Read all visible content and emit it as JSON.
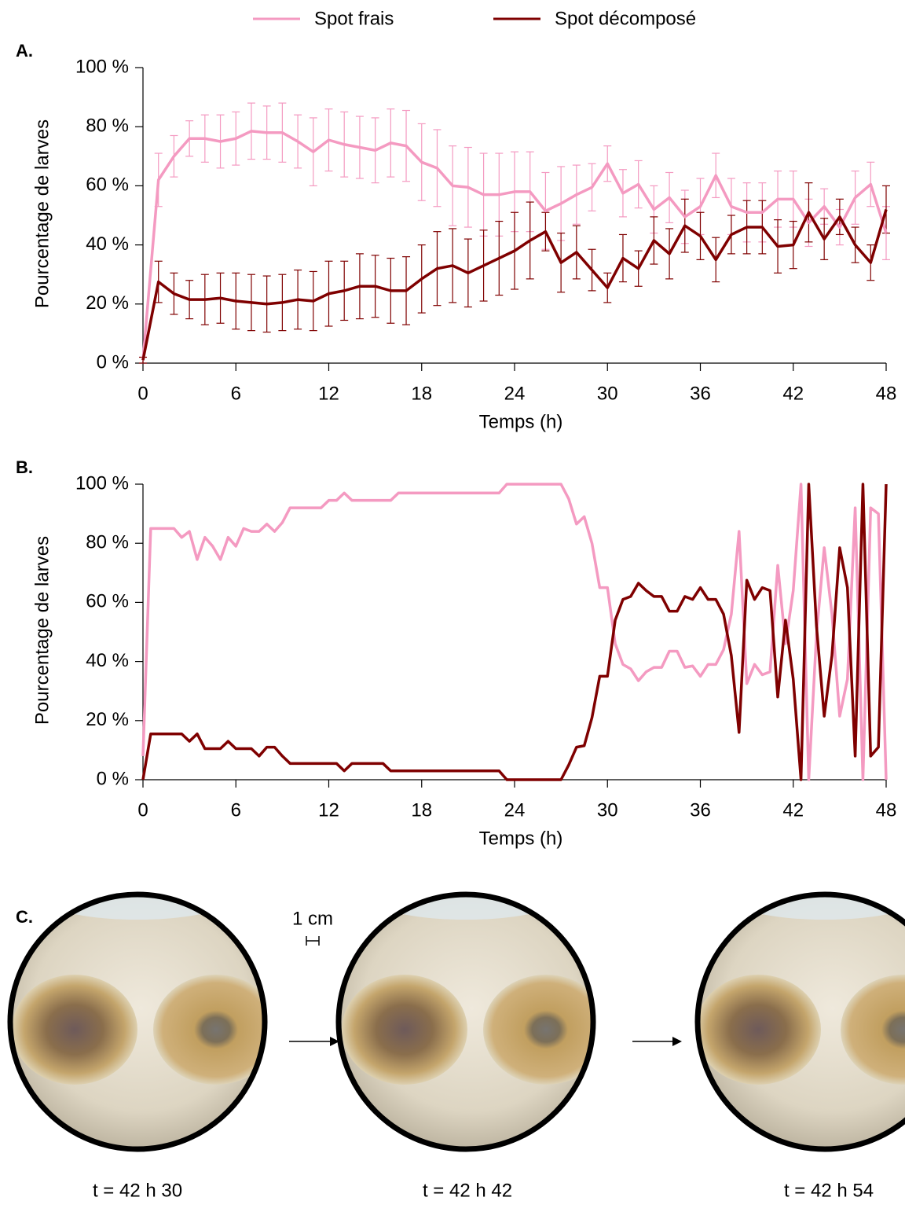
{
  "chart_data": [
    {
      "type": "line",
      "panel_label": "A.",
      "x_label": "Temps (h)",
      "y_label": "Pourcentage de larves",
      "x": [
        0,
        1,
        2,
        3,
        4,
        5,
        6,
        7,
        8,
        9,
        10,
        11,
        12,
        13,
        14,
        15,
        16,
        17,
        18,
        19,
        20,
        21,
        22,
        23,
        24,
        25,
        26,
        27,
        28,
        29,
        30,
        31,
        32,
        33,
        34,
        35,
        36,
        37,
        38,
        39,
        40,
        41,
        42,
        43,
        44,
        45,
        46,
        47,
        48
      ],
      "series": [
        {
          "name": "Spot frais",
          "color": "#f49ac1",
          "values": [
            1,
            62,
            70,
            76,
            76,
            75,
            76,
            78.5,
            78,
            78,
            75,
            71.5,
            75.5,
            74,
            73,
            72,
            74.5,
            73.5,
            68,
            66,
            60,
            59.5,
            57,
            57,
            58,
            58,
            51.5,
            54,
            57,
            59.5,
            67.5,
            57.5,
            60.5,
            52,
            56,
            49.5,
            53,
            63.5,
            53,
            51,
            51,
            55.5,
            55.5,
            47.5,
            53,
            46,
            56,
            60.5,
            44
          ],
          "errors": [
            1,
            9,
            7,
            6,
            8,
            9,
            9,
            9.5,
            9,
            10,
            9,
            11.5,
            10.5,
            11,
            10.5,
            11,
            11.5,
            12,
            13,
            13,
            13.5,
            13.5,
            14,
            14,
            13.5,
            13.5,
            13,
            12.5,
            10,
            8,
            6,
            8,
            8,
            8,
            8.5,
            9,
            9.5,
            7.5,
            9.5,
            10,
            10,
            9.5,
            9.5,
            8,
            6,
            6,
            9,
            7.5,
            9
          ]
        },
        {
          "name": "Spot décomposé",
          "color": "#7f0000",
          "values": [
            1,
            27.5,
            23.5,
            21.5,
            21.5,
            22,
            21,
            20.5,
            20,
            20.5,
            21.5,
            21,
            23.5,
            24.5,
            26,
            26,
            24.5,
            24.5,
            28.5,
            32,
            33,
            30.5,
            33,
            35.5,
            38,
            41.5,
            44.5,
            34,
            37.5,
            31.5,
            25.5,
            35.5,
            32,
            41.5,
            37,
            46.5,
            43,
            35,
            43.5,
            46,
            46,
            39.5,
            40,
            51,
            42,
            49.5,
            40,
            34,
            52
          ],
          "errors": [
            1,
            7,
            7,
            6.5,
            8.5,
            8.5,
            9.5,
            9.5,
            9.5,
            9.5,
            10,
            10,
            11,
            10,
            11,
            10.5,
            11,
            11.5,
            11.5,
            12.5,
            12.5,
            11.5,
            12,
            12.5,
            13,
            13,
            6.5,
            10,
            9,
            7,
            5,
            8,
            6,
            8,
            8.5,
            9,
            8,
            7.5,
            6.5,
            9,
            9,
            9,
            8,
            10,
            7,
            6,
            6,
            6,
            8
          ]
        }
      ],
      "xlim": [
        0,
        48
      ],
      "xticks": [
        0,
        6,
        12,
        18,
        24,
        30,
        36,
        42,
        48
      ],
      "ylim": [
        0,
        100
      ],
      "yticks": [
        {
          "value": 0,
          "label": "0 %"
        },
        {
          "value": 20,
          "label": "20 %"
        },
        {
          "value": 40,
          "label": "40 %"
        },
        {
          "value": 60,
          "label": "60 %"
        },
        {
          "value": 80,
          "label": "80 %"
        },
        {
          "value": 100,
          "label": "100 %"
        }
      ]
    },
    {
      "type": "line",
      "panel_label": "B.",
      "x_label": "Temps (h)",
      "y_label": "Pourcentage de larves",
      "x": [
        0,
        0.5,
        1,
        1.5,
        2,
        2.5,
        3,
        3.5,
        4,
        4.5,
        5,
        5.5,
        6,
        6.5,
        7,
        7.5,
        8,
        8.5,
        9,
        9.5,
        10,
        10.5,
        11,
        11.5,
        12,
        12.5,
        13,
        13.5,
        14,
        14.5,
        15,
        15.5,
        16,
        16.5,
        17,
        17.5,
        18,
        18.5,
        19,
        19.5,
        20,
        20.5,
        21,
        21.5,
        22,
        22.5,
        23,
        23.5,
        24,
        24.5,
        25,
        25.5,
        26,
        26.5,
        27,
        27.5,
        28,
        28.5,
        29,
        29.5,
        30,
        30.5,
        31,
        31.5,
        32,
        32.5,
        33,
        33.5,
        34,
        34.5,
        35,
        35.5,
        36,
        36.5,
        37,
        37.5,
        38,
        38.5,
        39,
        39.5,
        40,
        40.5,
        41,
        41.5,
        42,
        42.5,
        43,
        43.5,
        44,
        44.5,
        45,
        45.5,
        46,
        46.5,
        47,
        47.5,
        48
      ],
      "series": [
        {
          "color": "#f49ac1",
          "values": [
            8,
            85,
            85,
            85,
            85,
            82,
            84,
            74.5,
            82,
            79,
            74.5,
            82,
            79,
            85,
            84,
            84,
            86.5,
            84,
            87,
            92,
            92,
            92,
            92,
            92,
            94.5,
            94.5,
            97,
            94.5,
            94.5,
            94.5,
            94.5,
            94.5,
            94.5,
            97,
            97,
            97,
            97,
            97,
            97,
            97,
            97,
            97,
            97,
            97,
            97,
            97,
            97,
            100,
            100,
            100,
            100,
            100,
            100,
            100,
            100,
            95,
            86.5,
            89,
            80,
            65,
            65,
            46,
            39,
            37.5,
            33.5,
            36.5,
            38,
            38,
            43.5,
            43.5,
            38,
            38.5,
            35,
            39,
            39,
            44,
            56,
            84,
            32.5,
            39,
            35.5,
            36.5,
            72.5,
            46,
            64,
            100,
            0,
            49,
            78.5,
            56,
            21.5,
            34,
            92,
            0,
            92,
            90,
            0
          ]
        },
        {
          "color": "#7f0000",
          "values": [
            0,
            15.5,
            15.5,
            15.5,
            15.5,
            15.5,
            13,
            15.5,
            10.5,
            10.5,
            10.5,
            13,
            10.5,
            10.5,
            10.5,
            8,
            11,
            11,
            8,
            5.5,
            5.5,
            5.5,
            5.5,
            5.5,
            5.5,
            5.5,
            3,
            5.5,
            5.5,
            5.5,
            5.5,
            5.5,
            3,
            3,
            3,
            3,
            3,
            3,
            3,
            3,
            3,
            3,
            3,
            3,
            3,
            3,
            3,
            0,
            0,
            0,
            0,
            0,
            0,
            0,
            0,
            5,
            11,
            11.5,
            21,
            35,
            35,
            54,
            61,
            62,
            66.5,
            64,
            62,
            62,
            57,
            57,
            62,
            61,
            65,
            61,
            61,
            56,
            42,
            16,
            67.5,
            61,
            65,
            64,
            28,
            54,
            34,
            0,
            100,
            52,
            21.5,
            42,
            78.5,
            65,
            8,
            100,
            8,
            11,
            100
          ]
        }
      ],
      "xlim": [
        0,
        48
      ],
      "xticks": [
        0,
        6,
        12,
        18,
        24,
        30,
        36,
        42,
        48
      ],
      "ylim": [
        0,
        100
      ],
      "yticks": [
        {
          "value": 0,
          "label": "0 %"
        },
        {
          "value": 20,
          "label": "20 %"
        },
        {
          "value": 40,
          "label": "40 %"
        },
        {
          "value": 60,
          "label": "60 %"
        },
        {
          "value": 80,
          "label": "80 %"
        },
        {
          "value": 100,
          "label": "100 %"
        }
      ]
    }
  ],
  "photos": {
    "panel_label": "C.",
    "scale_label": "1 cm",
    "captions": [
      "t = 42 h 30",
      "t = 42 h 42",
      "t = 42 h 54"
    ]
  }
}
